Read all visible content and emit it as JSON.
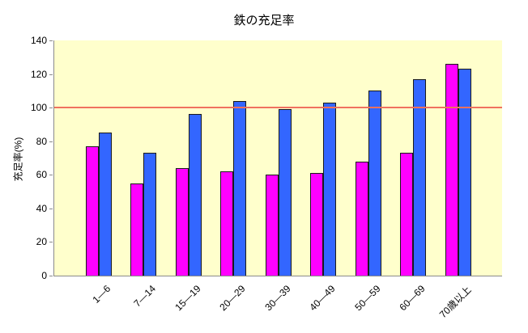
{
  "title": "鉄の充足率",
  "y_axis": {
    "label": "充足率(%)",
    "ticks": [
      0,
      20,
      40,
      60,
      80,
      100,
      120,
      140
    ]
  },
  "chart_data": {
    "type": "bar",
    "title": "鉄の充足率",
    "xlabel": "",
    "ylabel": "充足率(%)",
    "ylim": [
      0,
      140
    ],
    "grid": false,
    "legend": "none",
    "plot_bg_color": "#ffffcc",
    "categories": [
      "1—6",
      "7—14",
      "15—19",
      "20—29",
      "30—39",
      "40—49",
      "50—59",
      "60—69",
      "70歳以上"
    ],
    "series": [
      {
        "name": "series-magenta",
        "color": "#ff00ff",
        "values": [
          77,
          55,
          64,
          62,
          60,
          61,
          68,
          73,
          126
        ]
      },
      {
        "name": "series-blue",
        "color": "#3366ff",
        "values": [
          85,
          73,
          96,
          104,
          99,
          103,
          110,
          117,
          123
        ]
      }
    ],
    "reference_line": {
      "value": 100,
      "color": "#f0715f"
    }
  }
}
